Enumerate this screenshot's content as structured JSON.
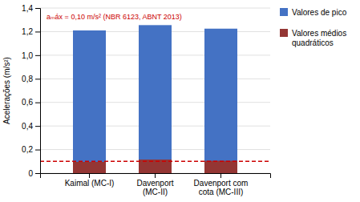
{
  "chart_data": {
    "type": "bar",
    "categories": [
      "Kaimal (MC-I)",
      "Davenport\n(MC-II)",
      "Davenport com\ncota (MC-III)"
    ],
    "series": [
      {
        "name": "Valores de pico",
        "color": "#4472C4",
        "values": [
          1.21,
          1.255,
          1.225
        ]
      },
      {
        "name": "Valores médios\nquadráticos",
        "color": "#943634",
        "values": [
          0.095,
          0.115,
          0.105
        ]
      }
    ],
    "ylabel": "Acelerações (m/s²)",
    "ylim": [
      0,
      1.4
    ],
    "yticks": [
      0,
      {
        "value": 0.2,
        "label": "0,2"
      },
      {
        "value": 0.4,
        "label": "0,4"
      },
      {
        "value": 0.6,
        "label": "0,6"
      },
      {
        "value": 0.8,
        "label": "0,8"
      },
      {
        "value": 1.0,
        "label": "1,0"
      },
      {
        "value": 1.2,
        "label": "1,2"
      },
      {
        "value": 1.4,
        "label": "1,4"
      }
    ],
    "annotations": [
      {
        "text": "aₘáx = 0,10 m/s² (NBR 6123, ABNT 2013)",
        "y": 0.1,
        "color": "#CC0000"
      }
    ],
    "grid": true,
    "legend": "right"
  }
}
